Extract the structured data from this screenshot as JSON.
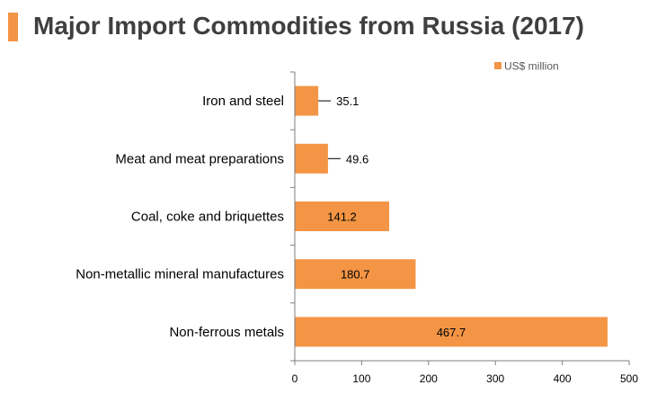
{
  "title": "Major Import Commodities from Russia (2017)",
  "colors": {
    "accent": "#f39545",
    "bar": "#f39545",
    "title_text": "#3f3f3f",
    "axis": "#7f7f7f",
    "label_text": "#000000",
    "legend_text": "#595959"
  },
  "chart_data": {
    "type": "bar",
    "orientation": "horizontal",
    "categories": [
      "Iron and steel",
      "Meat and meat preparations",
      "Coal, coke and briquettes",
      "Non-metallic mineral manufactures",
      "Non-ferrous metals"
    ],
    "series": [
      {
        "name": "US$ million",
        "values": [
          35.1,
          49.6,
          141.2,
          180.7,
          467.7
        ],
        "data_labels": [
          "35.1",
          "49.6",
          "141.2",
          "180.7",
          "467.7"
        ]
      }
    ],
    "xlim": [
      0,
      500
    ],
    "x_ticks": [
      0,
      100,
      200,
      300,
      400,
      500
    ],
    "legend_position": "top-right",
    "grid": false
  }
}
